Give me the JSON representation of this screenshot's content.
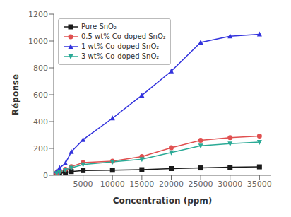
{
  "chart_data": {
    "type": "line",
    "xlabel": "Concentration (ppm)",
    "ylabel": "Réponse",
    "x": [
      500,
      1000,
      2000,
      3000,
      5000,
      10000,
      15000,
      20000,
      25000,
      30000,
      35000
    ],
    "series": [
      {
        "name": "Pure SnO₂",
        "color": "#1a1a1a",
        "marker": "square",
        "values": [
          10,
          15,
          20,
          28,
          35,
          38,
          42,
          50,
          55,
          60,
          63
        ]
      },
      {
        "name": "0.5 wt% Co-doped SnO₂",
        "color": "#e05050",
        "marker": "circle",
        "values": [
          20,
          30,
          45,
          65,
          95,
          105,
          140,
          205,
          260,
          280,
          292
        ]
      },
      {
        "name": "1 wt% Co-doped SnO₂",
        "color": "#3333dd",
        "marker": "triangle",
        "values": [
          30,
          55,
          90,
          175,
          265,
          425,
          595,
          775,
          990,
          1035,
          1050
        ]
      },
      {
        "name": "3 wt% Co-doped SnO₂",
        "color": "#2aaa96",
        "marker": "triangle-down",
        "values": [
          15,
          22,
          38,
          55,
          80,
          100,
          120,
          170,
          220,
          235,
          248
        ]
      }
    ],
    "xlim": [
      0,
      37000
    ],
    "ylim": [
      0,
      1200
    ],
    "xticks": [
      5000,
      10000,
      15000,
      20000,
      25000,
      30000,
      35000
    ],
    "yticks": [
      0,
      200,
      400,
      600,
      800,
      1000,
      1200
    ],
    "grid": false,
    "legend": "upper left"
  }
}
